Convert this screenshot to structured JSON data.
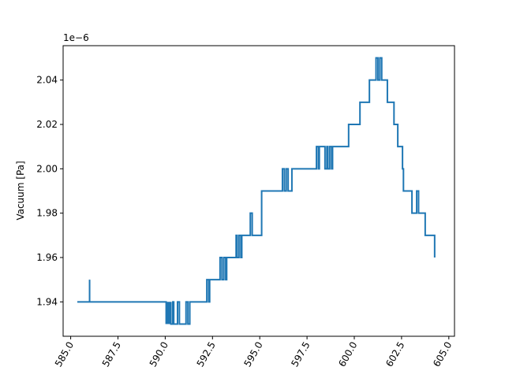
{
  "chart_data": {
    "type": "line",
    "title": "",
    "xlabel": "",
    "ylabel": "Vacuum [Pa]",
    "offset_text": "1e−6",
    "xlim": [
      584.6,
      605.3
    ],
    "ylim": [
      1.9245,
      2.0555
    ],
    "grid": false,
    "line_color": "#1f77b4",
    "x_ticks": [
      585.0,
      587.5,
      590.0,
      592.5,
      595.0,
      597.5,
      600.0,
      602.5,
      605.0
    ],
    "x_tick_labels": [
      "585.0",
      "587.5",
      "590.0",
      "592.5",
      "595.0",
      "597.5",
      "600.0",
      "602.5",
      "605.0"
    ],
    "y_ticks": [
      1.94,
      1.96,
      1.98,
      2.0,
      2.02,
      2.04
    ],
    "y_tick_labels": [
      "1.94",
      "1.96",
      "1.98",
      "2.00",
      "2.02",
      "2.04"
    ],
    "series": [
      {
        "x": [
          585.35,
          586.0,
          586.0,
          586.0,
          590.05,
          590.05,
          590.1,
          590.1,
          590.15,
          590.15,
          590.2,
          590.2,
          590.25,
          590.25,
          590.3,
          590.3,
          590.4,
          590.4,
          590.45,
          590.45,
          590.65,
          590.65,
          590.75,
          590.75,
          591.1,
          591.1,
          591.2,
          591.2,
          591.3,
          591.3,
          592.2,
          592.2,
          592.3,
          592.3,
          592.35,
          592.35,
          592.9,
          592.9,
          593.0,
          593.0,
          593.1,
          593.1,
          593.2,
          593.2,
          593.25,
          593.25,
          593.75,
          593.75,
          593.8,
          593.8,
          593.9,
          593.9,
          594.0,
          594.0,
          594.05,
          594.05,
          594.5,
          594.5,
          594.6,
          594.6,
          595.1,
          595.1,
          596.2,
          596.2,
          596.3,
          596.3,
          596.4,
          596.4,
          596.5,
          596.5,
          596.7,
          596.7,
          596.75,
          596.75,
          598.0,
          598.0,
          598.1,
          598.1,
          598.15,
          598.15,
          598.45,
          598.45,
          598.55,
          598.55,
          598.6,
          598.6,
          598.7,
          598.7,
          598.8,
          598.8,
          598.85,
          598.85,
          599.7,
          599.7,
          599.75,
          599.75,
          600.3,
          600.3,
          600.4,
          600.4,
          600.8,
          600.8,
          600.9,
          600.9,
          601.15,
          601.15,
          601.25,
          601.25,
          601.35,
          601.35,
          601.45,
          601.45,
          601.75,
          601.75,
          601.85,
          601.85,
          602.1,
          602.1,
          602.3,
          602.3,
          602.55,
          602.55,
          602.6,
          602.6,
          603.05,
          603.05,
          603.3,
          603.3,
          603.4,
          603.4,
          603.45,
          603.45,
          603.75,
          603.75,
          603.85,
          603.85,
          604.25,
          604.25
        ],
        "y": [
          1.94,
          1.94,
          1.95,
          1.94,
          1.94,
          1.93,
          1.94,
          1.93,
          1.94,
          1.93,
          1.94,
          1.93,
          1.94,
          1.93,
          1.94,
          1.93,
          1.93,
          1.94,
          1.94,
          1.93,
          1.93,
          1.94,
          1.94,
          1.93,
          1.93,
          1.94,
          1.94,
          1.93,
          1.93,
          1.94,
          1.94,
          1.95,
          1.95,
          1.94,
          1.94,
          1.95,
          1.95,
          1.96,
          1.96,
          1.95,
          1.95,
          1.96,
          1.96,
          1.95,
          1.95,
          1.96,
          1.96,
          1.97,
          1.97,
          1.96,
          1.96,
          1.97,
          1.97,
          1.96,
          1.96,
          1.97,
          1.97,
          1.98,
          1.98,
          1.97,
          1.97,
          1.99,
          1.99,
          2.0,
          2.0,
          1.99,
          1.99,
          2.0,
          2.0,
          1.99,
          1.99,
          2.0,
          2.0,
          2.0,
          2.0,
          2.01,
          2.01,
          2.0,
          2.0,
          2.01,
          2.01,
          2.0,
          2.0,
          2.01,
          2.01,
          2.0,
          2.0,
          2.01,
          2.01,
          2.0,
          2.0,
          2.01,
          2.01,
          2.02,
          2.02,
          2.02,
          2.02,
          2.03,
          2.03,
          2.03,
          2.03,
          2.04,
          2.04,
          2.04,
          2.04,
          2.05,
          2.05,
          2.04,
          2.04,
          2.05,
          2.05,
          2.04,
          2.04,
          2.03,
          2.03,
          2.03,
          2.03,
          2.02,
          2.02,
          2.01,
          2.01,
          2.0,
          2.0,
          1.99,
          1.99,
          1.98,
          1.98,
          1.99,
          1.99,
          1.98,
          1.98,
          1.98,
          1.98,
          1.97,
          1.97,
          1.97,
          1.97,
          1.96
        ]
      }
    ]
  }
}
